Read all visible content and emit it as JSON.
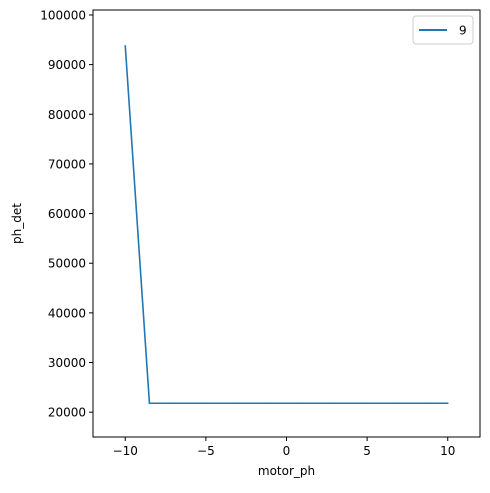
{
  "chart_data": {
    "type": "line",
    "title": "",
    "xlabel": "motor_ph",
    "ylabel": "ph_det",
    "xlim": [
      -12,
      12
    ],
    "ylim": [
      15000,
      101000
    ],
    "xticks": [
      -10,
      -5,
      0,
      5,
      10
    ],
    "xtick_labels": [
      "−10",
      "−5",
      "0",
      "5",
      "10"
    ],
    "yticks": [
      20000,
      30000,
      40000,
      50000,
      60000,
      70000,
      80000,
      90000,
      100000
    ],
    "ytick_labels": [
      "20000",
      "30000",
      "40000",
      "50000",
      "60000",
      "70000",
      "80000",
      "90000",
      "100000"
    ],
    "grid": false,
    "legend_position": "top-right",
    "series": [
      {
        "name": "9",
        "color": "#1f77b4",
        "x": [
          -10,
          -8.5,
          -7,
          -5,
          -3,
          -1,
          1,
          3,
          5,
          7,
          9,
          10
        ],
        "y": [
          93800,
          21800,
          21800,
          21800,
          21800,
          21800,
          21800,
          21800,
          21800,
          21800,
          21800,
          21800
        ]
      }
    ]
  }
}
